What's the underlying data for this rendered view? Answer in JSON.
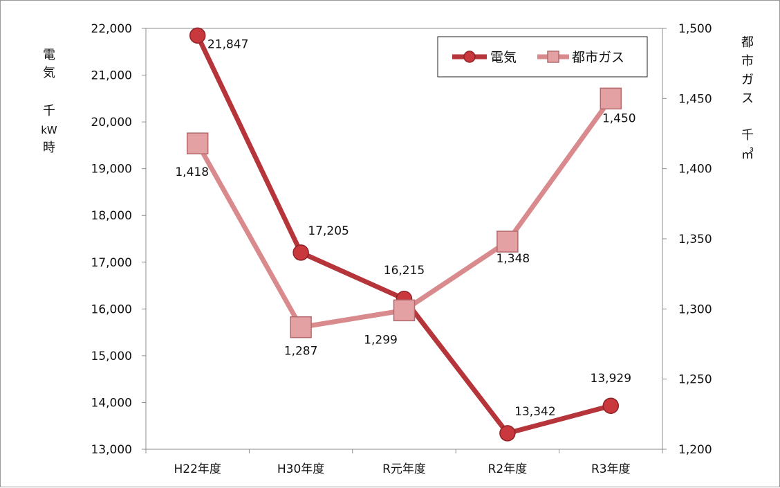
{
  "chart_data": {
    "type": "line",
    "categories": [
      "H22年度",
      "H30年度",
      "R元年度",
      "R2年度",
      "R3年度"
    ],
    "series": [
      {
        "name": "電気",
        "axis": "left",
        "values": [
          21847,
          17205,
          16215,
          13342,
          13929
        ],
        "labels": [
          "21,847",
          "17,205",
          "16,215",
          "13,342",
          "13,929"
        ],
        "color": "#b5353a",
        "marker": "circle"
      },
      {
        "name": "都市ガス",
        "axis": "right",
        "values": [
          1418,
          1287,
          1299,
          1348,
          1450
        ],
        "labels": [
          "1,418",
          "1,287",
          "1,299",
          "1,348",
          "1,450"
        ],
        "color": "#d98a8d",
        "marker": "square"
      }
    ],
    "y_left": {
      "label_lines": [
        "電",
        "気",
        "千",
        "kW",
        "時"
      ],
      "ylim": [
        13000,
        22000
      ],
      "ticks": [
        13000,
        14000,
        15000,
        16000,
        17000,
        18000,
        19000,
        20000,
        21000,
        22000
      ],
      "tick_labels": [
        "13,000",
        "14,000",
        "15,000",
        "16,000",
        "17,000",
        "18,000",
        "19,000",
        "20,000",
        "21,000",
        "22,000"
      ]
    },
    "y_right": {
      "label_lines": [
        "都",
        "市",
        "ガ",
        "ス",
        "千",
        "㎥"
      ],
      "ylim": [
        1200,
        1500
      ],
      "ticks": [
        1200,
        1250,
        1300,
        1350,
        1400,
        1450,
        1500
      ],
      "tick_labels": [
        "1,200",
        "1,250",
        "1,300",
        "1,350",
        "1,400",
        "1,450",
        "1,500"
      ]
    },
    "grid": false,
    "legend": {
      "position": "top-right",
      "entries": [
        "電気",
        "都市ガス"
      ]
    }
  }
}
